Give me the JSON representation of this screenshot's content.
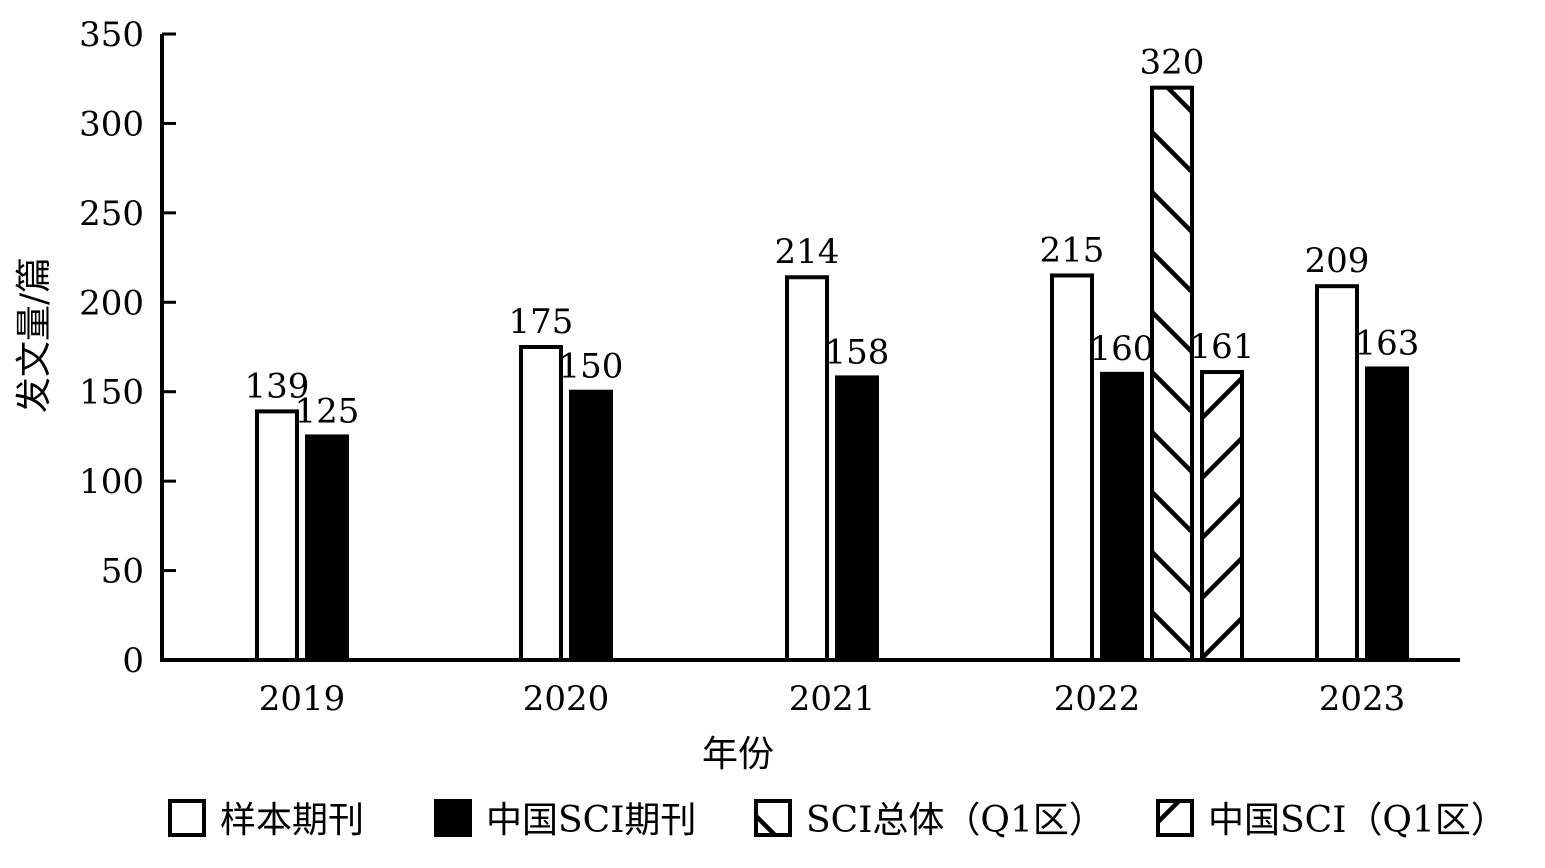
{
  "chart_data": {
    "type": "bar",
    "categories": [
      "2019",
      "2020",
      "2021",
      "2022",
      "2023"
    ],
    "xlabel": "年份",
    "ylabel": "发文量/篇",
    "ylim": [
      0,
      350
    ],
    "yticks": [
      0,
      50,
      100,
      150,
      200,
      250,
      300,
      350
    ],
    "grid": false,
    "legend_position": "bottom",
    "series": [
      {
        "name": "样本期刊",
        "style": "white",
        "values": [
          139,
          175,
          214,
          215,
          209
        ],
        "labels": [
          "139",
          "175",
          "214",
          "215",
          "209"
        ]
      },
      {
        "name": "中国SCI期刊",
        "style": "black",
        "values": [
          125,
          150,
          158,
          160,
          163
        ],
        "labels": [
          "125",
          "150",
          "158",
          "160",
          "163"
        ]
      },
      {
        "name": "SCI总体（Q1区）",
        "style": "hatch-backslash",
        "values": [
          null,
          null,
          null,
          320,
          null
        ],
        "labels": [
          null,
          null,
          null,
          "320",
          null
        ]
      },
      {
        "name": "中国SCI（Q1区）",
        "style": "hatch-slash",
        "values": [
          null,
          null,
          null,
          161,
          null
        ],
        "labels": [
          null,
          null,
          null,
          "161",
          null
        ]
      }
    ],
    "colors": {
      "bar_stroke": "#000000",
      "fill_white": "#ffffff",
      "fill_black": "#000000"
    }
  }
}
